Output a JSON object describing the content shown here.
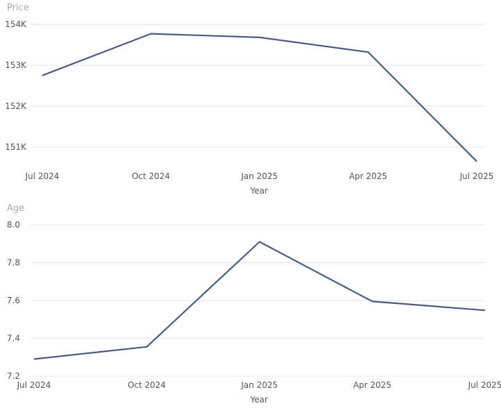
{
  "chart_data": [
    {
      "type": "line",
      "ylabel": "Price",
      "xlabel": "Year",
      "x": [
        "Jul 2024",
        "Oct 2024",
        "Jan 2025",
        "Apr 2025",
        "Jul 2025"
      ],
      "values": [
        152750,
        153770,
        153680,
        153320,
        150650
      ],
      "ylim": [
        150650,
        154000
      ],
      "yticks": [
        151000,
        152000,
        153000,
        154000
      ],
      "ytick_labels": [
        "151K",
        "152K",
        "153K",
        "154K"
      ],
      "grid": true
    },
    {
      "type": "line",
      "ylabel": "Age",
      "xlabel": "Year",
      "x": [
        "Jul 2024",
        "Oct 2024",
        "Jan 2025",
        "Apr 2025",
        "Jul 2025"
      ],
      "values": [
        7.29,
        7.355,
        7.91,
        7.595,
        7.548
      ],
      "ylim": [
        7.2,
        8.0
      ],
      "yticks": [
        7.2,
        7.4,
        7.6,
        7.8,
        8.0
      ],
      "ytick_labels": [
        "7.2",
        "7.4",
        "7.6",
        "7.8",
        "8.0"
      ],
      "grid": true
    }
  ]
}
